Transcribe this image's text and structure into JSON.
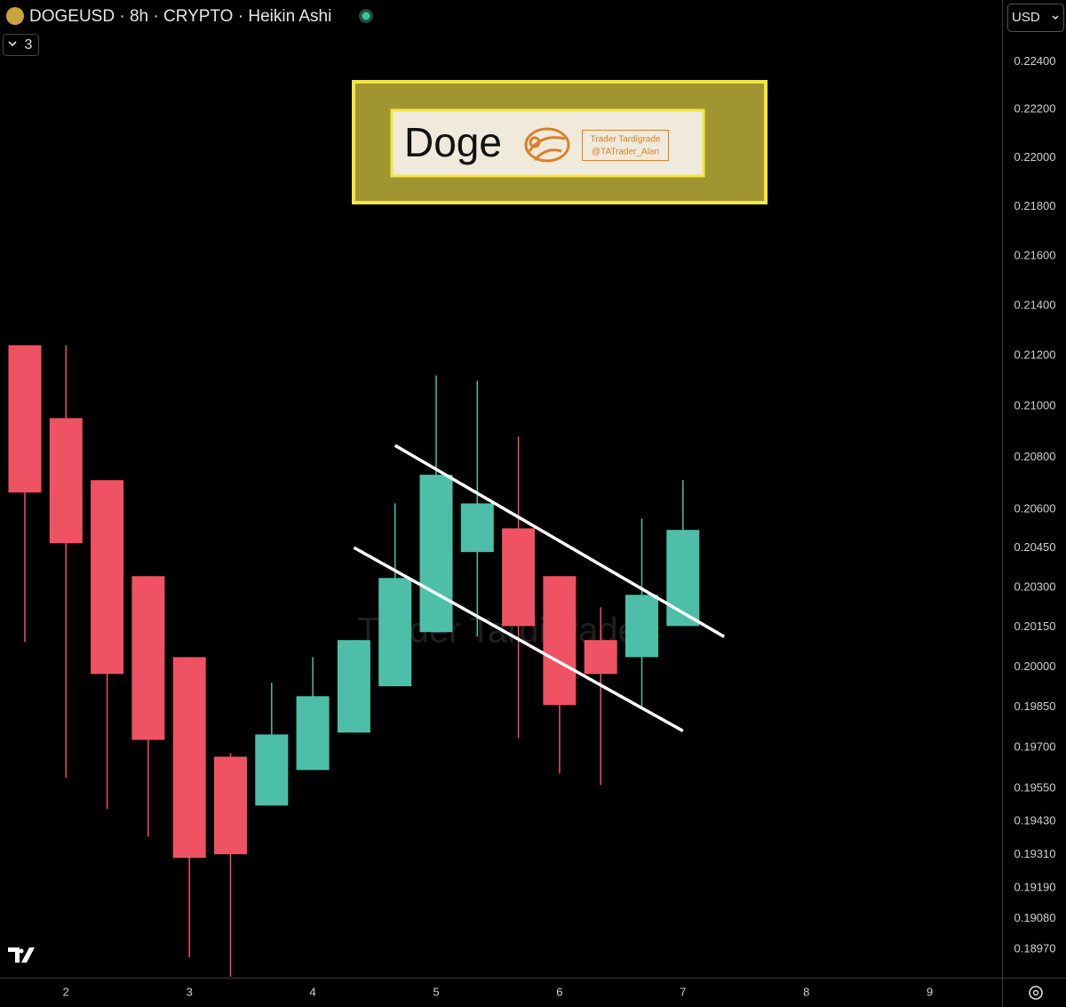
{
  "chart_data": {
    "type": "candlestick",
    "title": "DOGEUSD · 8h · CRYPTO · Heikin Ashi",
    "indicator_count": "3",
    "currency": "USD",
    "watermark": "Trader Tardigrade",
    "log_scale": true,
    "grid": false,
    "up_color": "#4dbfa8",
    "down_color": "#ef5262",
    "categories": [
      null,
      "2",
      null,
      null,
      "3",
      null,
      null,
      "4",
      null,
      null,
      "5",
      null,
      null,
      "6",
      null,
      null,
      "7",
      null,
      null,
      "8",
      null,
      null,
      "9"
    ],
    "open": [
      0.21242,
      0.20954,
      0.20712,
      0.20343,
      0.20037,
      0.19667,
      0.19488,
      0.19618,
      0.19756,
      0.19928,
      0.20131,
      0.20435,
      0.20526,
      0.20343,
      0.20101,
      0.20037,
      0.20154,
      null,
      null,
      null,
      null,
      null,
      null
    ],
    "high": [
      0.21242,
      0.21242,
      0.20712,
      0.20343,
      0.20037,
      0.1968,
      0.19941,
      0.20037,
      0.20101,
      0.20622,
      0.21122,
      0.21101,
      0.20881,
      0.20343,
      0.20225,
      0.20564,
      0.20712,
      null,
      null,
      null,
      null,
      null,
      null
    ],
    "low": [
      0.20094,
      0.19589,
      0.19475,
      0.19375,
      0.18942,
      0.18873,
      0.19488,
      0.19618,
      0.19756,
      0.19928,
      0.20131,
      0.20114,
      0.19736,
      0.19605,
      0.19563,
      0.19855,
      0.20154,
      null,
      null,
      null,
      null,
      null,
      null
    ],
    "close": [
      0.20664,
      0.20469,
      0.19974,
      0.19729,
      0.19298,
      0.19311,
      0.19749,
      0.19891,
      0.20101,
      0.20336,
      0.20733,
      0.20622,
      0.20154,
      0.19858,
      0.19974,
      0.20272,
      0.2052,
      null,
      null,
      null,
      null,
      null,
      null
    ],
    "ylim": [
      0.1887,
      0.2266
    ],
    "yticks": [
      {
        "value": 0.224,
        "label": "0.22400"
      },
      {
        "value": 0.222,
        "label": "0.22200"
      },
      {
        "value": 0.22,
        "label": "0.22000"
      },
      {
        "value": 0.218,
        "label": "0.21800"
      },
      {
        "value": 0.216,
        "label": "0.21600"
      },
      {
        "value": 0.214,
        "label": "0.21400"
      },
      {
        "value": 0.212,
        "label": "0.21200"
      },
      {
        "value": 0.21,
        "label": "0.21000"
      },
      {
        "value": 0.208,
        "label": "0.20800"
      },
      {
        "value": 0.206,
        "label": "0.20600"
      },
      {
        "value": 0.2045,
        "label": "0.20450"
      },
      {
        "value": 0.203,
        "label": "0.20300"
      },
      {
        "value": 0.2015,
        "label": "0.20150"
      },
      {
        "value": 0.2,
        "label": "0.20000"
      },
      {
        "value": 0.1985,
        "label": "0.19850"
      },
      {
        "value": 0.197,
        "label": "0.19700"
      },
      {
        "value": 0.1955,
        "label": "0.19550"
      },
      {
        "value": 0.1943,
        "label": "0.19430"
      },
      {
        "value": 0.1931,
        "label": "0.19310"
      },
      {
        "value": 0.1919,
        "label": "0.19190"
      },
      {
        "value": 0.1908,
        "label": "0.19080"
      },
      {
        "value": 0.1897,
        "label": "0.18970"
      }
    ],
    "trendlines": [
      {
        "color": "#ffffff",
        "x": [
          9,
          17
        ],
        "y": [
          0.20847,
          0.20114
        ]
      },
      {
        "color": "#ffffff",
        "x": [
          8,
          16
        ],
        "y": [
          0.20452,
          0.19762
        ]
      }
    ],
    "annotations": {
      "label": "Doge",
      "author": "Trader Tardigrade",
      "handle": "@TATrader_Alan"
    }
  }
}
